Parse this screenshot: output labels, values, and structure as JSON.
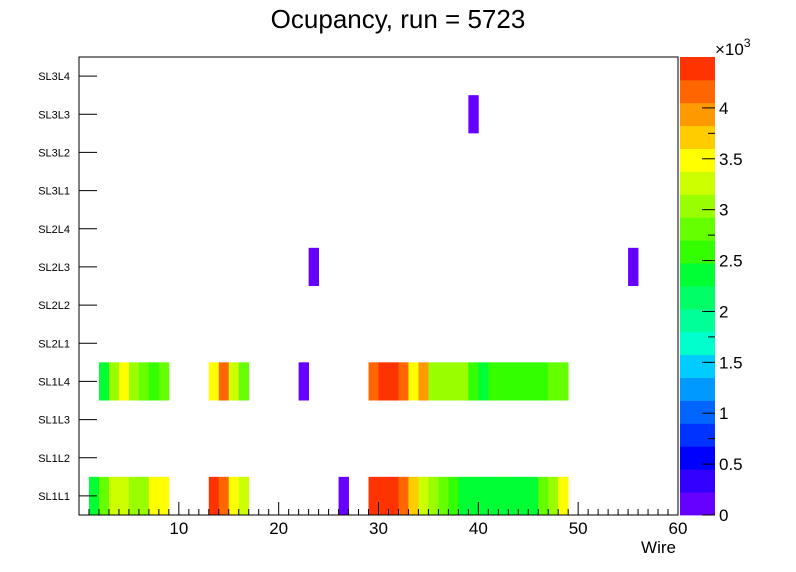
{
  "chart_data": {
    "type": "heatmap",
    "title": "Ocupancy, run = 5723",
    "xlabel": "Wire",
    "ylabel": "",
    "xlim": [
      0,
      60
    ],
    "x_ticks": [
      "10",
      "20",
      "30",
      "40",
      "50",
      "60"
    ],
    "y_categories": [
      "SL1L1",
      "SL1L2",
      "SL1L3",
      "SL1L4",
      "SL2L1",
      "SL2L2",
      "SL2L3",
      "SL2L4",
      "SL3L1",
      "SL3L2",
      "SL3L3",
      "SL3L4"
    ],
    "z_range": [
      0,
      4500
    ],
    "colorbar": {
      "ticks": [
        "0",
        "0.5",
        "1",
        "1.5",
        "2",
        "2.5",
        "3",
        "3.5",
        "4"
      ],
      "multiplier_base": "×10",
      "multiplier_exp": "3",
      "colors": [
        "#6600ff",
        "#3300ff",
        "#0000ff",
        "#0033ff",
        "#0066ff",
        "#0099ff",
        "#00ccff",
        "#00ffcc",
        "#00ff99",
        "#00ff66",
        "#00ff33",
        "#33ff00",
        "#66ff00",
        "#99ff00",
        "#ccff00",
        "#ffff00",
        "#ffcc00",
        "#ff9900",
        "#ff6600",
        "#ff3300"
      ]
    },
    "grid": false,
    "cells": [
      {
        "layer": "SL1L1",
        "wires": [
          1,
          2,
          3,
          4,
          5,
          6,
          7,
          8
        ],
        "values": [
          2400,
          2850,
          3250,
          3350,
          3050,
          2950,
          3400,
          3450
        ]
      },
      {
        "layer": "SL1L1",
        "wires": [
          13,
          14,
          15,
          16
        ],
        "values": [
          4350,
          4100,
          3550,
          3350
        ]
      },
      {
        "layer": "SL1L1",
        "wires": [
          26
        ],
        "values": [
          80
        ]
      },
      {
        "layer": "SL1L1",
        "wires": [
          29,
          30,
          31,
          32,
          33,
          34,
          35,
          36,
          37,
          38,
          39,
          40,
          41,
          42,
          43,
          44,
          45,
          46,
          47,
          48
        ],
        "values": [
          4350,
          4450,
          4450,
          4200,
          3700,
          3250,
          3050,
          2850,
          2550,
          2450,
          2350,
          2250,
          2350,
          2400,
          2400,
          2400,
          2450,
          2750,
          3050,
          3400
        ]
      },
      {
        "layer": "SL1L4",
        "wires": [
          2,
          3,
          4,
          5,
          6,
          7,
          8
        ],
        "values": [
          2350,
          3100,
          3450,
          3050,
          2850,
          2650,
          2850
        ]
      },
      {
        "layer": "SL1L4",
        "wires": [
          13,
          14,
          15,
          16
        ],
        "values": [
          3450,
          4100,
          3200,
          2850
        ]
      },
      {
        "layer": "SL1L4",
        "wires": [
          22
        ],
        "values": [
          80
        ]
      },
      {
        "layer": "SL1L4",
        "wires": [
          29,
          30,
          31,
          32,
          33,
          34,
          35,
          36,
          37,
          38,
          39,
          40,
          41,
          42,
          43,
          44,
          45,
          46,
          47,
          48
        ],
        "values": [
          4150,
          4400,
          4400,
          4150,
          3450,
          4000,
          3100,
          2950,
          2950,
          2950,
          2650,
          2450,
          2550,
          2650,
          2550,
          2550,
          2550,
          2650,
          2850,
          2850
        ]
      },
      {
        "layer": "SL2L3",
        "wires": [
          23
        ],
        "values": [
          80
        ]
      },
      {
        "layer": "SL2L3",
        "wires": [
          55
        ],
        "values": [
          80
        ]
      },
      {
        "layer": "SL3L3",
        "wires": [
          39
        ],
        "values": [
          80
        ]
      }
    ]
  }
}
